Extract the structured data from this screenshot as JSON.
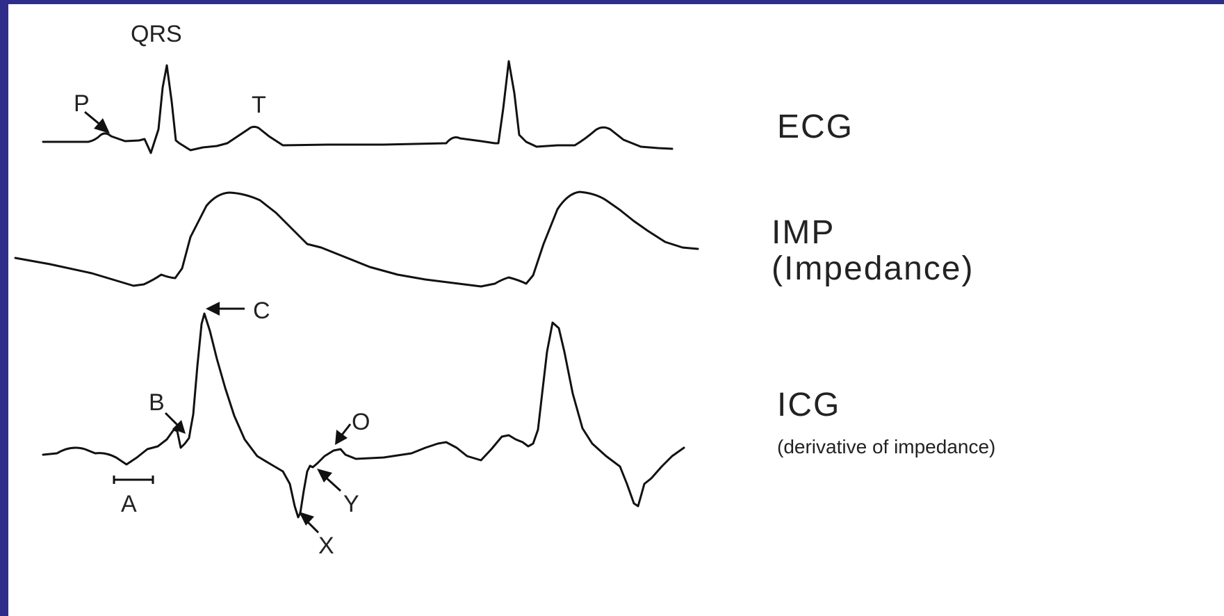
{
  "traces": {
    "ecg": {
      "label": "ECG",
      "points": {
        "p": "P",
        "qrs": "QRS",
        "t": "T"
      }
    },
    "imp": {
      "label": "IMP",
      "sublabel": "(Impedance)"
    },
    "icg": {
      "label": "ICG",
      "sublabel": "(derivative of impedance)",
      "points": {
        "a": "A",
        "b": "B",
        "c": "C",
        "x": "X",
        "y": "Y",
        "o": "O"
      }
    }
  },
  "colors": {
    "border": "#2e2e8a",
    "background": "#ffffff",
    "ink": "#111111"
  }
}
